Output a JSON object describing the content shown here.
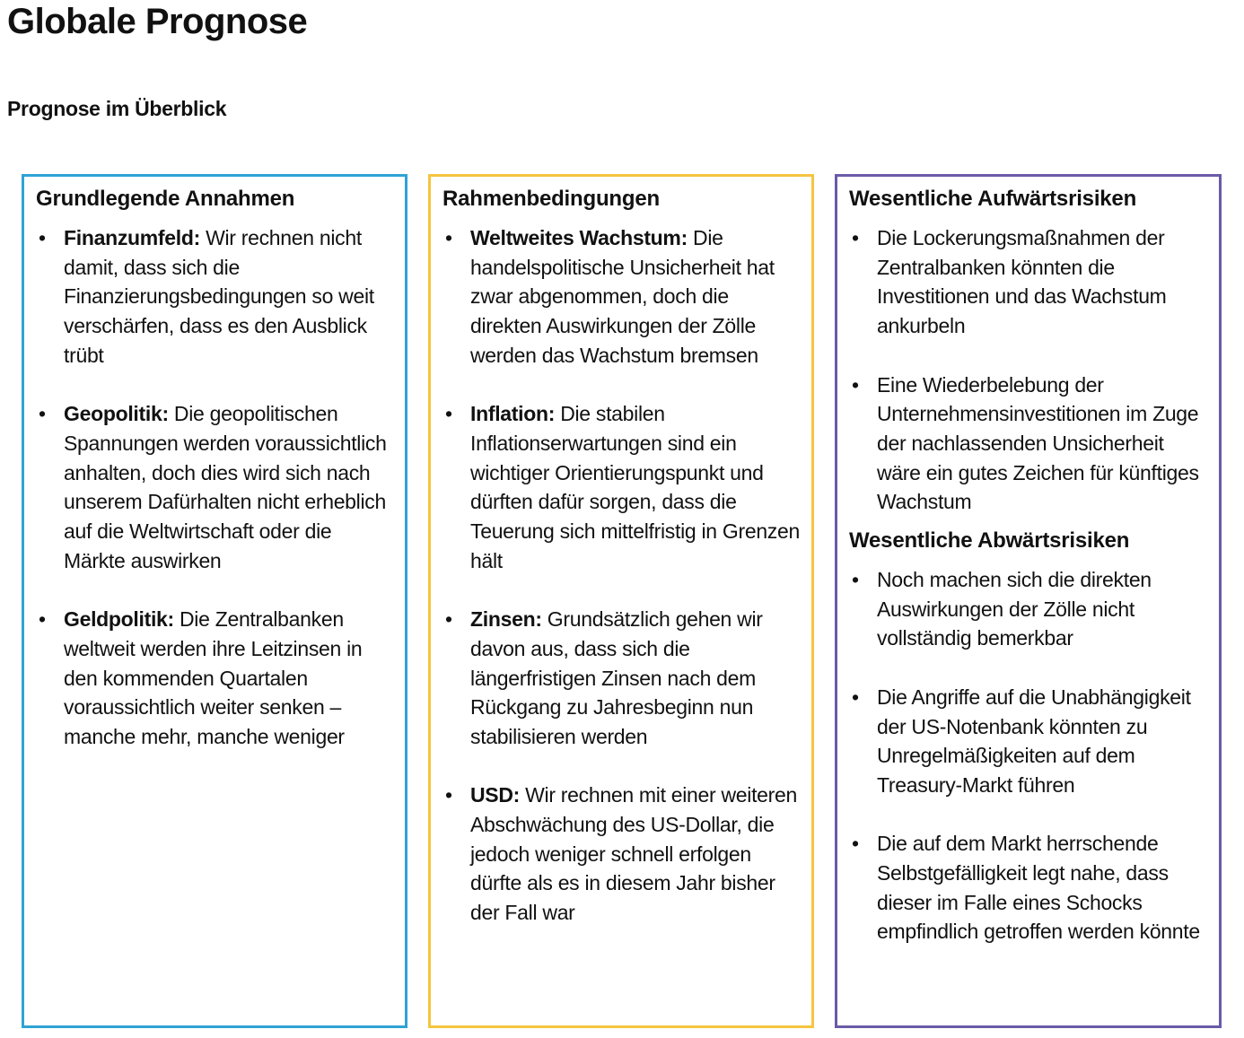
{
  "page": {
    "title": "Globale Prognose",
    "subtitle": "Prognose im Überblick"
  },
  "colors": {
    "col1_border": "#2ea3d5",
    "col2_border": "#f5c540",
    "col3_border": "#6b5aa8"
  },
  "columns": [
    {
      "sections": [
        {
          "heading": "Grundlegende Annahmen",
          "items": [
            {
              "label": "Finanzumfeld:",
              "text": "Wir rechnen nicht damit, dass sich die Finanzierungsbedingungen so weit verschärfen, dass es den Ausblick trübt"
            },
            {
              "label": "Geopolitik:",
              "text": "Die geopolitischen Spannungen werden voraussichtlich anhalten, doch dies wird sich nach unserem Dafürhalten nicht erheblich auf die Weltwirtschaft oder die Märkte auswirken"
            },
            {
              "label": "Geldpolitik:",
              "text": "Die Zentralbanken weltweit werden ihre Leitzinsen in den kommenden Quartalen voraussichtlich weiter senken – manche mehr, manche weniger"
            }
          ]
        }
      ]
    },
    {
      "sections": [
        {
          "heading": "Rahmenbedingungen",
          "items": [
            {
              "label": "Weltweites Wachstum:",
              "text": "Die handelspolitische Unsicherheit hat zwar abgenommen, doch die direkten Auswirkungen der Zölle werden das Wachstum bremsen"
            },
            {
              "label": "Inflation:",
              "text": "Die stabilen Inflationserwartungen sind ein wichtiger Orientierungspunkt und dürften dafür sorgen, dass die Teuerung sich mittelfristig in Grenzen hält"
            },
            {
              "label": "Zinsen:",
              "text": "Grundsätzlich gehen wir davon aus, dass sich die längerfristigen Zinsen nach dem Rückgang zu Jahresbeginn nun stabilisieren werden"
            },
            {
              "label": "USD:",
              "text": "Wir rechnen mit einer weiteren Abschwächung des US-Dollar, die jedoch weniger schnell erfolgen dürfte als es in diesem Jahr bisher der Fall war"
            }
          ]
        }
      ]
    },
    {
      "sections": [
        {
          "heading": "Wesentliche Aufwärtsrisiken",
          "items": [
            {
              "label": "",
              "text": "Die Lockerungsmaßnahmen der Zentralbanken könnten die Investitionen und das Wachstum ankurbeln"
            },
            {
              "label": "",
              "text": "Eine Wiederbelebung der Unternehmensinvestitionen im Zuge der nachlassenden Unsicherheit wäre ein gutes Zeichen für künftiges Wachstum"
            }
          ]
        },
        {
          "heading": "Wesentliche Abwärtsrisiken",
          "items": [
            {
              "label": "",
              "text": "Noch machen sich die direkten Auswirkungen der Zölle nicht vollständig bemerkbar"
            },
            {
              "label": "",
              "text": "Die Angriffe auf die Unabhängigkeit der US-Notenbank könnten zu Unregelmäßigkeiten auf dem Treasury-Markt führen"
            },
            {
              "label": "",
              "text": "Die auf dem Markt herrschende Selbstgefälligkeit legt nahe, dass dieser im Falle eines Schocks empfindlich getroffen werden könnte"
            }
          ]
        }
      ]
    }
  ]
}
